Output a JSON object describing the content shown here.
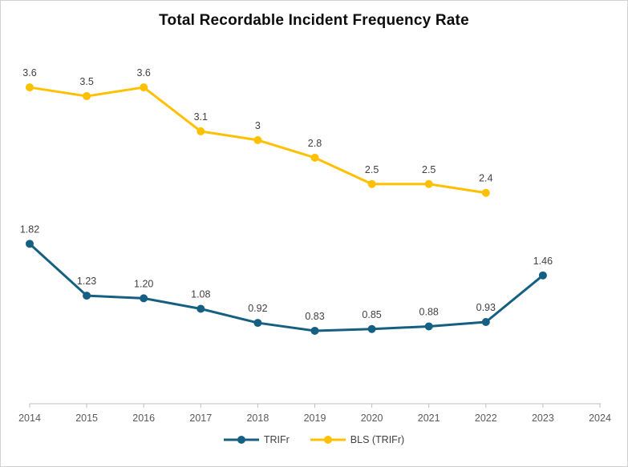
{
  "chart": {
    "title": "Total Recordable Incident Frequency Rate"
  },
  "chart_data": {
    "type": "line",
    "title": "Total Recordable Incident Frequency Rate",
    "xlabel": "",
    "ylabel": "",
    "x_ticks": [
      "2014",
      "2015",
      "2016",
      "2017",
      "2018",
      "2019",
      "2020",
      "2021",
      "2022",
      "2023",
      "2024"
    ],
    "xlim": [
      2014,
      2024
    ],
    "ylim": [
      0,
      4.1
    ],
    "grid": false,
    "data_labels": true,
    "legend_position": "bottom",
    "series": [
      {
        "name": "TRIFr",
        "color": "#156082",
        "x": [
          2014,
          2015,
          2016,
          2017,
          2018,
          2019,
          2020,
          2021,
          2022,
          2023
        ],
        "values": [
          1.82,
          1.23,
          1.2,
          1.08,
          0.92,
          0.83,
          0.85,
          0.88,
          0.93,
          1.46
        ],
        "labels": [
          "1.82",
          "1.23",
          "1.20",
          "1.08",
          "0.92",
          "0.83",
          "0.85",
          "0.88",
          "0.93",
          "1.46"
        ]
      },
      {
        "name": "BLS (TRIFr)",
        "color": "#FFC000",
        "x": [
          2014,
          2015,
          2016,
          2017,
          2018,
          2019,
          2020,
          2021,
          2022
        ],
        "values": [
          3.6,
          3.5,
          3.6,
          3.1,
          3,
          2.8,
          2.5,
          2.5,
          2.4
        ],
        "labels": [
          "3.6",
          "3.5",
          "3.6",
          "3.1",
          "3",
          "2.8",
          "2.5",
          "2.5",
          "2.4"
        ]
      }
    ]
  },
  "colors": {
    "axis_line": "#BFBFBF",
    "axis_label": "#595959",
    "data_label": "#404040",
    "title": "#0D0D0D",
    "border": "#D2D2D2",
    "background": "#FFFFFF"
  }
}
